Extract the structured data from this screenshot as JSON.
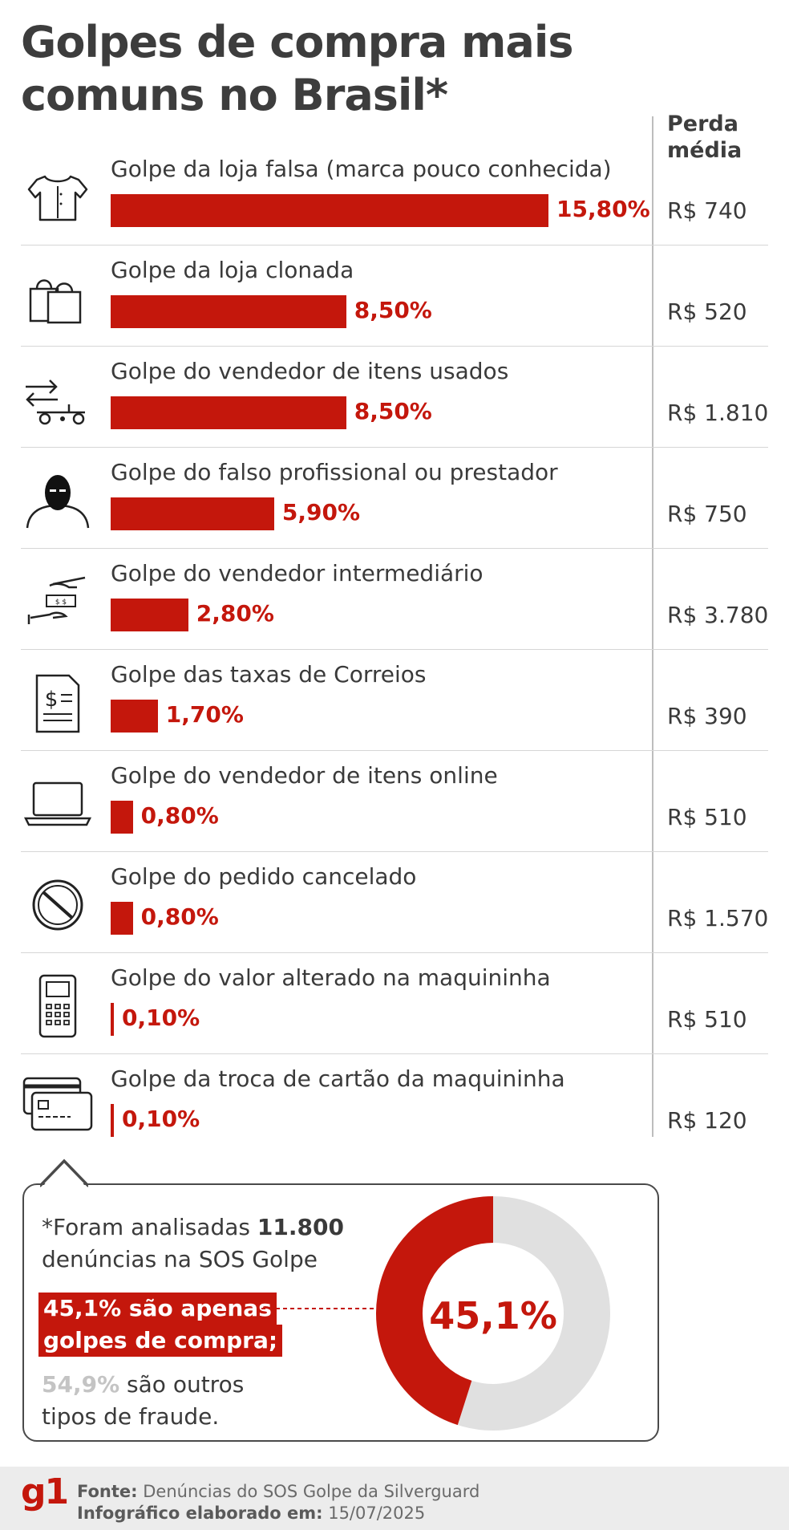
{
  "title": "Golpes de compra mais comuns no Brasil*",
  "loss_header_line1": "Perda",
  "loss_header_line2": "média",
  "chart_data": {
    "type": "bar",
    "orientation": "horizontal",
    "title": "Golpes de compra mais comuns no Brasil*",
    "categories": [
      "Golpe da loja falsa (marca pouco conhecida)",
      "Golpe da loja clonada",
      "Golpe do vendedor de itens usados",
      "Golpe do falso profissional ou prestador",
      "Golpe do vendedor intermediário",
      "Golpe das taxas de Correios",
      "Golpe do vendedor de itens online",
      "Golpe do pedido cancelado",
      "Golpe do valor alterado na maquininha",
      "Golpe da troca de cartão da maquininha"
    ],
    "values": [
      15.8,
      8.5,
      8.5,
      5.9,
      2.8,
      1.7,
      0.8,
      0.8,
      0.1,
      0.1
    ],
    "value_labels": [
      "15,80%",
      "8,50%",
      "8,50%",
      "5,90%",
      "2,80%",
      "1,70%",
      "0,80%",
      "0,80%",
      "0,10%",
      "0,10%"
    ],
    "avg_loss": [
      "R$ 740",
      "R$ 520",
      "R$ 1.810",
      "R$ 750",
      "R$ 3.780",
      "R$ 390",
      "R$ 510",
      "R$ 1.570",
      "R$ 510",
      "R$ 120"
    ],
    "icons": [
      "shirt-icon",
      "shopping-bags-icon",
      "exchange-cart-icon",
      "masked-person-icon",
      "hands-money-icon",
      "invoice-dollar-icon",
      "laptop-icon",
      "cancel-icon",
      "card-machine-icon",
      "credit-cards-icon"
    ],
    "xlim": [
      0,
      15.8
    ],
    "bar_color": "#c4170c"
  },
  "donut": {
    "type": "pie",
    "label": "45,1%",
    "values": [
      45.1,
      54.9
    ],
    "colors": [
      "#c4170c",
      "#e0e0e0"
    ]
  },
  "note": {
    "prefix": "*Foram analisadas ",
    "bold": "11.800",
    "line2": "denúncias na SOS Golpe",
    "highlight1": "45,1% são apenas",
    "highlight2": "golpes de compra;",
    "others_pct": "54,9%",
    "others_rest": " são outros",
    "others_line2": "tipos de fraude."
  },
  "footer": {
    "logo": "g1",
    "source_label": "Fonte:",
    "source": " Denúncias do SOS Golpe da Silverguard",
    "date_label": "Infográfico elaborado em:",
    "date": " 15/07/2025"
  },
  "colors": {
    "accent": "#c4170c",
    "text": "#3a3a3a",
    "muted": "#c4c4c4"
  }
}
